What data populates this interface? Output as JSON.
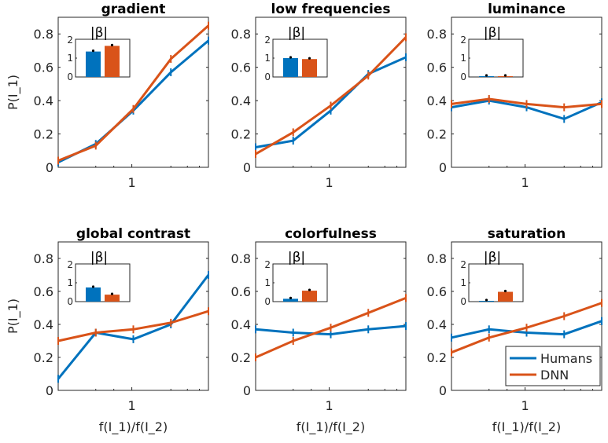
{
  "chart_data": [
    {
      "type": "line",
      "title": "gradient",
      "ylabel": "P(I_1)",
      "xlabel": "",
      "x": [
        1,
        2,
        3,
        4,
        5
      ],
      "xtick_labels": [
        "1"
      ],
      "ylim": [
        0,
        0.9
      ],
      "yticks": [
        "0",
        "0.2",
        "0.4",
        "0.6",
        "0.8"
      ],
      "series": [
        {
          "name": "Humans",
          "values": [
            0.03,
            0.14,
            0.34,
            0.57,
            0.76
          ]
        },
        {
          "name": "DNN",
          "values": [
            0.04,
            0.13,
            0.35,
            0.65,
            0.85
          ]
        }
      ],
      "inset": {
        "title": "|β|",
        "yticks": [
          "0",
          "1",
          "2"
        ],
        "ylim": [
          0,
          2
        ],
        "values": [
          1.35,
          1.65
        ]
      }
    },
    {
      "type": "line",
      "title": "low frequencies",
      "ylabel": "",
      "xlabel": "",
      "x": [
        1,
        2,
        3,
        4,
        5
      ],
      "xtick_labels": [
        "1"
      ],
      "ylim": [
        0,
        0.9
      ],
      "yticks": [
        "0",
        "0.2",
        "0.4",
        "0.6",
        "0.8"
      ],
      "series": [
        {
          "name": "Humans",
          "values": [
            0.12,
            0.16,
            0.34,
            0.56,
            0.66
          ]
        },
        {
          "name": "DNN",
          "values": [
            0.08,
            0.21,
            0.37,
            0.55,
            0.78
          ]
        }
      ],
      "inset": {
        "title": "|β|",
        "yticks": [
          "0",
          "1",
          "2"
        ],
        "ylim": [
          0,
          2
        ],
        "values": [
          1.0,
          0.95
        ]
      }
    },
    {
      "type": "line",
      "title": "luminance",
      "ylabel": "",
      "xlabel": "",
      "x": [
        1,
        2,
        3,
        4,
        5
      ],
      "xtick_labels": [
        "1"
      ],
      "ylim": [
        0,
        0.9
      ],
      "yticks": [
        "0",
        "0.2",
        "0.4",
        "0.6",
        "0.8"
      ],
      "series": [
        {
          "name": "Humans",
          "values": [
            0.36,
            0.4,
            0.36,
            0.29,
            0.39
          ]
        },
        {
          "name": "DNN",
          "values": [
            0.38,
            0.41,
            0.38,
            0.36,
            0.38
          ]
        }
      ],
      "inset": {
        "title": "|β|",
        "yticks": [
          "0",
          "1",
          "2"
        ],
        "ylim": [
          0,
          2
        ],
        "values": [
          0.03,
          0.02
        ]
      }
    },
    {
      "type": "line",
      "title": "global contrast",
      "ylabel": "P(I_1)",
      "xlabel": "f(I_1)/f(I_2)",
      "x": [
        1,
        2,
        3,
        4,
        5
      ],
      "xtick_labels": [
        "1"
      ],
      "ylim": [
        0,
        0.9
      ],
      "yticks": [
        "0",
        "0.2",
        "0.4",
        "0.6",
        "0.8"
      ],
      "series": [
        {
          "name": "Humans",
          "values": [
            0.07,
            0.35,
            0.31,
            0.4,
            0.7
          ]
        },
        {
          "name": "DNN",
          "values": [
            0.3,
            0.35,
            0.37,
            0.41,
            0.48
          ]
        }
      ],
      "inset": {
        "title": "|β|",
        "yticks": [
          "0",
          "1",
          "2"
        ],
        "ylim": [
          0,
          2
        ],
        "values": [
          0.75,
          0.37
        ]
      }
    },
    {
      "type": "line",
      "title": "colorfulness",
      "ylabel": "",
      "xlabel": "f(I_1)/f(I_2)",
      "x": [
        1,
        2,
        3,
        4,
        5
      ],
      "xtick_labels": [
        "1"
      ],
      "ylim": [
        0,
        0.9
      ],
      "yticks": [
        "0",
        "0.2",
        "0.4",
        "0.6",
        "0.8"
      ],
      "series": [
        {
          "name": "Humans",
          "values": [
            0.37,
            0.35,
            0.34,
            0.37,
            0.39
          ]
        },
        {
          "name": "DNN",
          "values": [
            0.2,
            0.3,
            0.38,
            0.47,
            0.56
          ]
        }
      ],
      "inset": {
        "title": "|β|",
        "yticks": [
          "0",
          "1",
          "2"
        ],
        "ylim": [
          0,
          2
        ],
        "values": [
          0.15,
          0.58
        ]
      }
    },
    {
      "type": "line",
      "title": "saturation",
      "ylabel": "",
      "xlabel": "f(I_1)/f(I_2)",
      "x": [
        1,
        2,
        3,
        4,
        5
      ],
      "xtick_labels": [
        "1"
      ],
      "ylim": [
        0,
        0.9
      ],
      "yticks": [
        "0",
        "0.2",
        "0.4",
        "0.6",
        "0.8"
      ],
      "series": [
        {
          "name": "Humans",
          "values": [
            0.32,
            0.37,
            0.35,
            0.34,
            0.42
          ]
        },
        {
          "name": "DNN",
          "values": [
            0.23,
            0.32,
            0.38,
            0.45,
            0.53
          ]
        }
      ],
      "inset": {
        "title": "|β|",
        "yticks": [
          "0",
          "1",
          "2"
        ],
        "ylim": [
          0,
          2
        ],
        "values": [
          0.02,
          0.52
        ]
      }
    }
  ],
  "legend": {
    "placement": "bottom-right of last panel",
    "entries": [
      "Humans",
      "DNN"
    ]
  },
  "colors": {
    "Humans": "#0072BD",
    "DNN": "#D95319"
  }
}
